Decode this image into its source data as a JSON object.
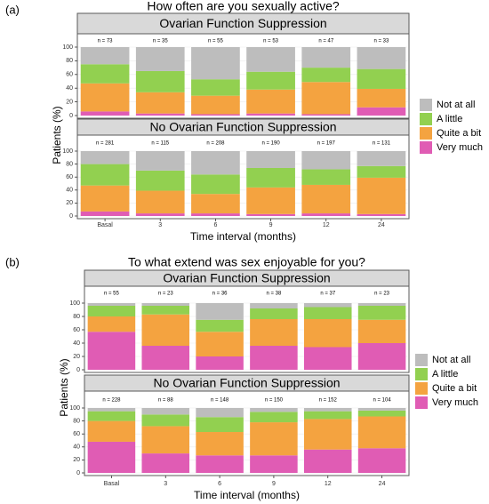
{
  "chart_data": [
    {
      "panel_label": "(a)",
      "title": "How often are you sexually active?",
      "type": "bar",
      "stacked": true,
      "ylabel": "Patients (%)",
      "xlabel": "Time interval (months)",
      "ylim": [
        0,
        100
      ],
      "yticks": [
        0,
        20,
        40,
        60,
        80,
        100
      ],
      "categories": [
        "Basal",
        "3",
        "6",
        "9",
        "12",
        "24"
      ],
      "legend": {
        "position": "right",
        "entries": [
          "Not at all",
          "A little",
          "Quite a bit",
          "Very much"
        ]
      },
      "facets": [
        {
          "title": "Ovarian Function Suppression",
          "n_labels": [
            "n = 73",
            "n = 35",
            "n = 55",
            "n = 53",
            "n = 47",
            "n = 33"
          ],
          "series": [
            {
              "name": "Very much",
              "values": [
                6,
                3,
                2,
                3,
                2,
                12
              ]
            },
            {
              "name": "Quite a bit",
              "values": [
                41,
                31,
                27,
                35,
                47,
                27
              ]
            },
            {
              "name": "A little",
              "values": [
                28,
                31,
                24,
                26,
                21,
                29
              ]
            },
            {
              "name": "Not at all",
              "values": [
                25,
                35,
                47,
                36,
                30,
                32
              ]
            }
          ]
        },
        {
          "title": "No Ovarian Function Suppression",
          "n_labels": [
            "n = 281",
            "n = 115",
            "n = 208",
            "n = 190",
            "n = 197",
            "n = 131"
          ],
          "series": [
            {
              "name": "Very much",
              "values": [
                7,
                4,
                4,
                3,
                4,
                3
              ]
            },
            {
              "name": "Quite a bit",
              "values": [
                40,
                35,
                30,
                41,
                44,
                56
              ]
            },
            {
              "name": "A little",
              "values": [
                33,
                31,
                30,
                30,
                24,
                18
              ]
            },
            {
              "name": "Not at all",
              "values": [
                20,
                30,
                36,
                26,
                28,
                23
              ]
            }
          ]
        }
      ]
    },
    {
      "panel_label": "(b)",
      "title": "To what extend was sex enjoyable for you?",
      "type": "bar",
      "stacked": true,
      "ylabel": "Patients (%)",
      "xlabel": "Time interval (months)",
      "ylim": [
        0,
        100
      ],
      "yticks": [
        0,
        20,
        40,
        60,
        80,
        100
      ],
      "categories": [
        "Basal",
        "3",
        "6",
        "9",
        "12",
        "24"
      ],
      "legend": {
        "position": "right",
        "entries": [
          "Not at all",
          "A little",
          "Quite a bit",
          "Very much"
        ]
      },
      "facets": [
        {
          "title": "Ovarian Function Suppression",
          "n_labels": [
            "n = 55",
            "n = 23",
            "n = 36",
            "n = 38",
            "n = 37",
            "n = 23"
          ],
          "series": [
            {
              "name": "Very much",
              "values": [
                57,
                36,
                20,
                36,
                34,
                40
              ]
            },
            {
              "name": "Quite a bit",
              "values": [
                23,
                47,
                37,
                40,
                42,
                35
              ]
            },
            {
              "name": "A little",
              "values": [
                16,
                13,
                18,
                16,
                18,
                21
              ]
            },
            {
              "name": "Not at all",
              "values": [
                4,
                4,
                25,
                8,
                6,
                4
              ]
            }
          ]
        },
        {
          "title": "No Ovarian Function Suppression",
          "n_labels": [
            "n = 228",
            "n = 88",
            "n = 148",
            "n = 150",
            "n = 152",
            "n = 104"
          ],
          "series": [
            {
              "name": "Very much",
              "values": [
                48,
                30,
                27,
                27,
                36,
                38
              ]
            },
            {
              "name": "Quite a bit",
              "values": [
                32,
                42,
                36,
                51,
                47,
                49
              ]
            },
            {
              "name": "A little",
              "values": [
                15,
                18,
                23,
                16,
                12,
                9
              ]
            },
            {
              "name": "Not at all",
              "values": [
                5,
                10,
                14,
                6,
                5,
                4
              ]
            }
          ]
        }
      ]
    }
  ],
  "colors": {
    "Not at all": "#bdbdbd",
    "A little": "#92d050",
    "Quite a bit": "#f4a340",
    "Very much": "#e05cb4",
    "strip_fill": "#d9d9d9",
    "strip_border": "#595959",
    "plot_border": "#595959",
    "grid": "#ebebeb"
  }
}
